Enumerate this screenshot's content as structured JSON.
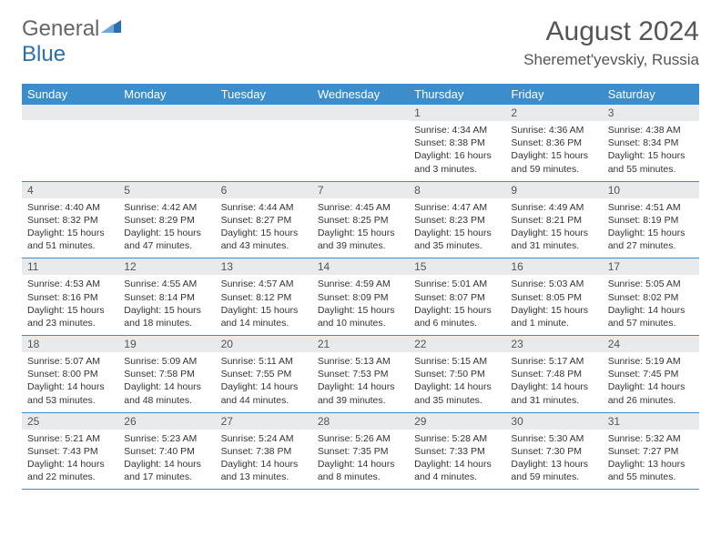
{
  "logo": {
    "general": "General",
    "blue": "Blue"
  },
  "title": "August 2024",
  "location": "Sheremet'yevskiy, Russia",
  "colors": {
    "header_bg": "#3c8dcc",
    "header_text": "#ffffff",
    "daynum_bg": "#e9eaec",
    "row_border": "#3c8dcc",
    "title_color": "#555555",
    "body_text": "#333333",
    "logo_gray": "#666666",
    "logo_blue": "#2a6fb0"
  },
  "weekdays": [
    "Sunday",
    "Monday",
    "Tuesday",
    "Wednesday",
    "Thursday",
    "Friday",
    "Saturday"
  ],
  "weeks": [
    [
      null,
      null,
      null,
      null,
      {
        "d": "1",
        "sr": "4:34 AM",
        "ss": "8:38 PM",
        "dl": "16 hours and 3 minutes."
      },
      {
        "d": "2",
        "sr": "4:36 AM",
        "ss": "8:36 PM",
        "dl": "15 hours and 59 minutes."
      },
      {
        "d": "3",
        "sr": "4:38 AM",
        "ss": "8:34 PM",
        "dl": "15 hours and 55 minutes."
      }
    ],
    [
      {
        "d": "4",
        "sr": "4:40 AM",
        "ss": "8:32 PM",
        "dl": "15 hours and 51 minutes."
      },
      {
        "d": "5",
        "sr": "4:42 AM",
        "ss": "8:29 PM",
        "dl": "15 hours and 47 minutes."
      },
      {
        "d": "6",
        "sr": "4:44 AM",
        "ss": "8:27 PM",
        "dl": "15 hours and 43 minutes."
      },
      {
        "d": "7",
        "sr": "4:45 AM",
        "ss": "8:25 PM",
        "dl": "15 hours and 39 minutes."
      },
      {
        "d": "8",
        "sr": "4:47 AM",
        "ss": "8:23 PM",
        "dl": "15 hours and 35 minutes."
      },
      {
        "d": "9",
        "sr": "4:49 AM",
        "ss": "8:21 PM",
        "dl": "15 hours and 31 minutes."
      },
      {
        "d": "10",
        "sr": "4:51 AM",
        "ss": "8:19 PM",
        "dl": "15 hours and 27 minutes."
      }
    ],
    [
      {
        "d": "11",
        "sr": "4:53 AM",
        "ss": "8:16 PM",
        "dl": "15 hours and 23 minutes."
      },
      {
        "d": "12",
        "sr": "4:55 AM",
        "ss": "8:14 PM",
        "dl": "15 hours and 18 minutes."
      },
      {
        "d": "13",
        "sr": "4:57 AM",
        "ss": "8:12 PM",
        "dl": "15 hours and 14 minutes."
      },
      {
        "d": "14",
        "sr": "4:59 AM",
        "ss": "8:09 PM",
        "dl": "15 hours and 10 minutes."
      },
      {
        "d": "15",
        "sr": "5:01 AM",
        "ss": "8:07 PM",
        "dl": "15 hours and 6 minutes."
      },
      {
        "d": "16",
        "sr": "5:03 AM",
        "ss": "8:05 PM",
        "dl": "15 hours and 1 minute."
      },
      {
        "d": "17",
        "sr": "5:05 AM",
        "ss": "8:02 PM",
        "dl": "14 hours and 57 minutes."
      }
    ],
    [
      {
        "d": "18",
        "sr": "5:07 AM",
        "ss": "8:00 PM",
        "dl": "14 hours and 53 minutes."
      },
      {
        "d": "19",
        "sr": "5:09 AM",
        "ss": "7:58 PM",
        "dl": "14 hours and 48 minutes."
      },
      {
        "d": "20",
        "sr": "5:11 AM",
        "ss": "7:55 PM",
        "dl": "14 hours and 44 minutes."
      },
      {
        "d": "21",
        "sr": "5:13 AM",
        "ss": "7:53 PM",
        "dl": "14 hours and 39 minutes."
      },
      {
        "d": "22",
        "sr": "5:15 AM",
        "ss": "7:50 PM",
        "dl": "14 hours and 35 minutes."
      },
      {
        "d": "23",
        "sr": "5:17 AM",
        "ss": "7:48 PM",
        "dl": "14 hours and 31 minutes."
      },
      {
        "d": "24",
        "sr": "5:19 AM",
        "ss": "7:45 PM",
        "dl": "14 hours and 26 minutes."
      }
    ],
    [
      {
        "d": "25",
        "sr": "5:21 AM",
        "ss": "7:43 PM",
        "dl": "14 hours and 22 minutes."
      },
      {
        "d": "26",
        "sr": "5:23 AM",
        "ss": "7:40 PM",
        "dl": "14 hours and 17 minutes."
      },
      {
        "d": "27",
        "sr": "5:24 AM",
        "ss": "7:38 PM",
        "dl": "14 hours and 13 minutes."
      },
      {
        "d": "28",
        "sr": "5:26 AM",
        "ss": "7:35 PM",
        "dl": "14 hours and 8 minutes."
      },
      {
        "d": "29",
        "sr": "5:28 AM",
        "ss": "7:33 PM",
        "dl": "14 hours and 4 minutes."
      },
      {
        "d": "30",
        "sr": "5:30 AM",
        "ss": "7:30 PM",
        "dl": "13 hours and 59 minutes."
      },
      {
        "d": "31",
        "sr": "5:32 AM",
        "ss": "7:27 PM",
        "dl": "13 hours and 55 minutes."
      }
    ]
  ],
  "labels": {
    "sunrise": "Sunrise: ",
    "sunset": "Sunset: ",
    "daylight": "Daylight: "
  }
}
